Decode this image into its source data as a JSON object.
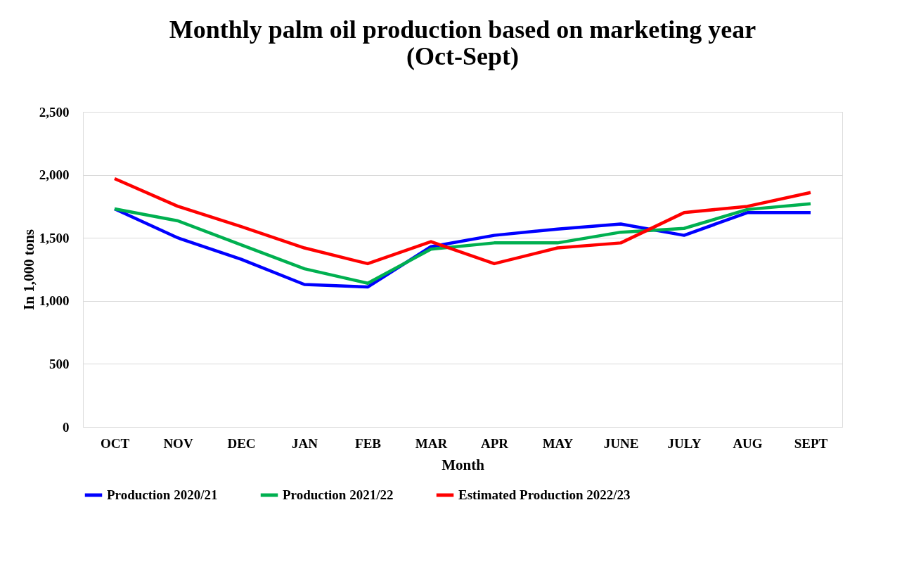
{
  "chart_data": {
    "type": "line",
    "title": [
      "Monthly palm oil production based on marketing year",
      "(Oct-Sept)"
    ],
    "xlabel": "Month",
    "ylabel": "In 1,000 tons",
    "categories": [
      "OCT",
      "NOV",
      "DEC",
      "JAN",
      "FEB",
      "MAR",
      "APR",
      "MAY",
      "JUNE",
      "JULY",
      "AUG",
      "SEPT"
    ],
    "series": [
      {
        "name": "Production 2020/21",
        "color": "#0000ff",
        "values": [
          1730,
          1500,
          1330,
          1130,
          1110,
          1430,
          1520,
          1570,
          1610,
          1520,
          1700,
          1700
        ]
      },
      {
        "name": "Production 2021/22",
        "color": "#00b050",
        "values": [
          1730,
          1635,
          1445,
          1255,
          1140,
          1410,
          1460,
          1460,
          1545,
          1575,
          1725,
          1770
        ]
      },
      {
        "name": "Estimated Production 2022/23",
        "color": "#ff0000",
        "values": [
          1970,
          1750,
          1590,
          1420,
          1295,
          1470,
          1295,
          1420,
          1460,
          1700,
          1750,
          1860
        ]
      }
    ],
    "ylim": [
      0,
      2500
    ],
    "yticks": [
      0,
      500,
      {
        "value": 1000,
        "label": "1,000"
      },
      {
        "value": 1500,
        "label": "1,500"
      },
      {
        "value": 2000,
        "label": "2,000"
      },
      {
        "value": 2500,
        "label": "2,500"
      }
    ],
    "grid": "y",
    "legend": "bottom",
    "marker": "none",
    "line_style": "solid"
  }
}
